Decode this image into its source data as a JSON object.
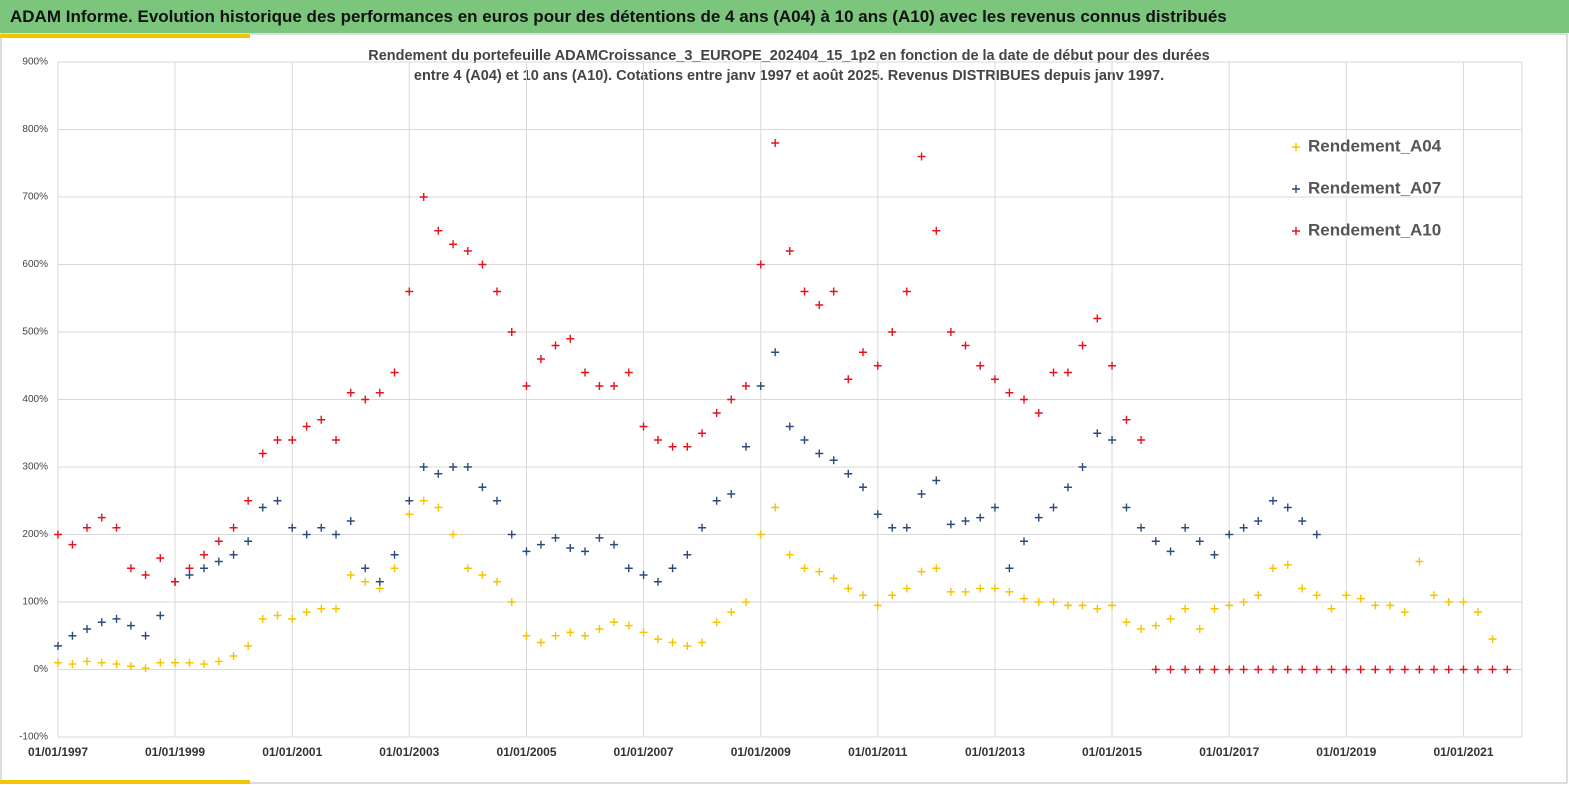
{
  "header": {
    "title": "ADAM Informe. Evolution historique des performances en euros pour des détentions de 4 ans (A04) à 10 ans (A10) avec les revenus connus distribués"
  },
  "chart_data": {
    "type": "scatter",
    "title": "Rendement du portefeuille ADAMCroissance_3_EUROPE_202404_15_1p2  en fonction de la date de début pour des durées",
    "subtitle": "entre 4 (A04) et 10 ans (A10). Cotations entre janv 1997 et août 2025. Revenus DISTRIBUES depuis janv 1997.",
    "x": [
      "1997-01-01",
      "1997-04-01",
      "1997-07-01",
      "1997-10-01",
      "1998-01-01",
      "1998-04-01",
      "1998-07-01",
      "1998-10-01",
      "1999-01-01",
      "1999-04-01",
      "1999-07-01",
      "1999-10-01",
      "2000-01-01",
      "2000-04-01",
      "2000-07-01",
      "2000-10-01",
      "2001-01-01",
      "2001-04-01",
      "2001-07-01",
      "2001-10-01",
      "2002-01-01",
      "2002-04-01",
      "2002-07-01",
      "2002-10-01",
      "2003-01-01",
      "2003-04-01",
      "2003-07-01",
      "2003-10-01",
      "2004-01-01",
      "2004-04-01",
      "2004-07-01",
      "2004-10-01",
      "2005-01-01",
      "2005-04-01",
      "2005-07-01",
      "2005-10-01",
      "2006-01-01",
      "2006-04-01",
      "2006-07-01",
      "2006-10-01",
      "2007-01-01",
      "2007-04-01",
      "2007-07-01",
      "2007-10-01",
      "2008-01-01",
      "2008-04-01",
      "2008-07-01",
      "2008-10-01",
      "2009-01-01",
      "2009-04-01",
      "2009-07-01",
      "2009-10-01",
      "2010-01-01",
      "2010-04-01",
      "2010-07-01",
      "2010-10-01",
      "2011-01-01",
      "2011-04-01",
      "2011-07-01",
      "2011-10-01",
      "2012-01-01",
      "2012-04-01",
      "2012-07-01",
      "2012-10-01",
      "2013-01-01",
      "2013-04-01",
      "2013-07-01",
      "2013-10-01",
      "2014-01-01",
      "2014-04-01",
      "2014-07-01",
      "2014-10-01",
      "2015-01-01",
      "2015-04-01",
      "2015-07-01",
      "2015-10-01",
      "2016-01-01",
      "2016-04-01",
      "2016-07-01",
      "2016-10-01",
      "2017-01-01",
      "2017-04-01",
      "2017-07-01",
      "2017-10-01",
      "2018-01-01",
      "2018-04-01",
      "2018-07-01",
      "2018-10-01",
      "2019-01-01",
      "2019-04-01",
      "2019-07-01",
      "2019-10-01",
      "2020-01-01",
      "2020-04-01",
      "2020-07-01",
      "2020-10-01",
      "2021-01-01",
      "2021-04-01",
      "2021-07-01",
      "2021-10-01"
    ],
    "series": [
      {
        "name": "Rendement_A04",
        "color": "#f5c400",
        "values": [
          10,
          8,
          12,
          10,
          8,
          5,
          2,
          10,
          10,
          10,
          8,
          12,
          20,
          35,
          75,
          80,
          75,
          85,
          90,
          90,
          140,
          130,
          120,
          150,
          230,
          250,
          240,
          200,
          150,
          140,
          130,
          100,
          50,
          40,
          50,
          55,
          50,
          60,
          70,
          65,
          55,
          45,
          40,
          35,
          40,
          70,
          85,
          100,
          200,
          240,
          170,
          150,
          145,
          135,
          120,
          110,
          95,
          110,
          120,
          145,
          150,
          115,
          115,
          120,
          120,
          115,
          105,
          100,
          100,
          95,
          95,
          90,
          95,
          70,
          60,
          65,
          75,
          90,
          60,
          90,
          95,
          100,
          110,
          150,
          155,
          120,
          110,
          90,
          110,
          105,
          95,
          95,
          85,
          160,
          110,
          100,
          100,
          85,
          45,
          null
        ]
      },
      {
        "name": "Rendement_A07",
        "color": "#2e4a7d",
        "values": [
          35,
          50,
          60,
          70,
          75,
          65,
          50,
          80,
          130,
          140,
          150,
          160,
          170,
          190,
          240,
          250,
          210,
          200,
          210,
          200,
          220,
          150,
          130,
          170,
          250,
          300,
          290,
          300,
          300,
          270,
          250,
          200,
          175,
          185,
          195,
          180,
          175,
          195,
          185,
          150,
          140,
          130,
          150,
          170,
          210,
          250,
          260,
          330,
          420,
          470,
          360,
          340,
          320,
          310,
          290,
          270,
          230,
          210,
          210,
          260,
          280,
          215,
          220,
          225,
          240,
          150,
          190,
          225,
          240,
          270,
          300,
          350,
          340,
          240,
          210,
          190,
          175,
          210,
          190,
          170,
          200,
          210,
          220,
          250,
          240,
          220,
          200,
          null,
          null,
          null,
          null,
          null,
          null,
          null,
          null,
          null,
          null,
          null,
          null,
          null
        ]
      },
      {
        "name": "Rendement_A10",
        "color": "#e8101a",
        "values": [
          200,
          185,
          210,
          225,
          210,
          150,
          140,
          165,
          130,
          150,
          170,
          190,
          210,
          250,
          320,
          340,
          340,
          360,
          370,
          340,
          410,
          400,
          410,
          440,
          560,
          700,
          650,
          630,
          620,
          600,
          560,
          500,
          420,
          460,
          480,
          490,
          440,
          420,
          420,
          440,
          360,
          340,
          330,
          330,
          350,
          380,
          400,
          420,
          600,
          780,
          620,
          560,
          540,
          560,
          430,
          470,
          450,
          500,
          560,
          760,
          650,
          500,
          480,
          450,
          430,
          410,
          400,
          380,
          440,
          440,
          480,
          520,
          450,
          370,
          340,
          0,
          0,
          0,
          0,
          0,
          0,
          0,
          0,
          0,
          0,
          0,
          0,
          0,
          0,
          0,
          0,
          0,
          0,
          0,
          0,
          0,
          0,
          0,
          0,
          0
        ]
      }
    ],
    "xlim": [
      "1997-01-01",
      "2022-01-01"
    ],
    "xticks": [
      {
        "value": "1997-01-01",
        "label": "01/01/1997"
      },
      {
        "value": "1999-01-01",
        "label": "01/01/1999"
      },
      {
        "value": "2001-01-01",
        "label": "01/01/2001"
      },
      {
        "value": "2003-01-01",
        "label": "01/01/2003"
      },
      {
        "value": "2005-01-01",
        "label": "01/01/2005"
      },
      {
        "value": "2007-01-01",
        "label": "01/01/2007"
      },
      {
        "value": "2009-01-01",
        "label": "01/01/2009"
      },
      {
        "value": "2011-01-01",
        "label": "01/01/2011"
      },
      {
        "value": "2013-01-01",
        "label": "01/01/2013"
      },
      {
        "value": "2015-01-01",
        "label": "01/01/2015"
      },
      {
        "value": "2017-01-01",
        "label": "01/01/2017"
      },
      {
        "value": "2019-01-01",
        "label": "01/01/2019"
      },
      {
        "value": "2021-01-01",
        "label": "01/01/2021"
      }
    ],
    "ylim": [
      -100,
      900
    ],
    "yticks": [
      {
        "value": -100,
        "label": "-100%"
      },
      {
        "value": 0,
        "label": "0%"
      },
      {
        "value": 100,
        "label": "100%"
      },
      {
        "value": 200,
        "label": "200%"
      },
      {
        "value": 300,
        "label": "300%"
      },
      {
        "value": 400,
        "label": "400%"
      },
      {
        "value": 500,
        "label": "500%"
      },
      {
        "value": 600,
        "label": "600%"
      },
      {
        "value": 700,
        "label": "700%"
      },
      {
        "value": 800,
        "label": "800%"
      },
      {
        "value": 900,
        "label": "900%"
      }
    ],
    "grid": true,
    "legend": "upper right"
  }
}
